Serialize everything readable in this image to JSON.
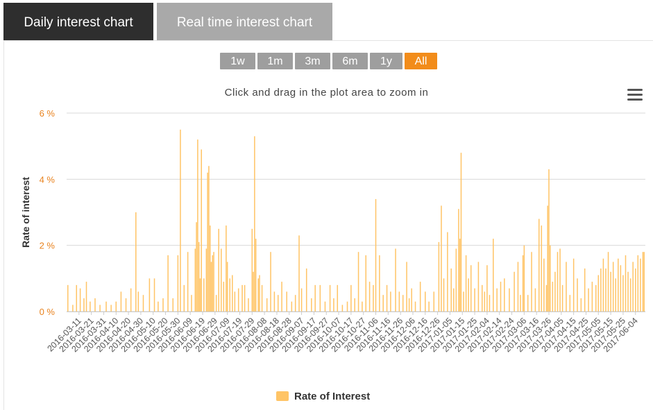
{
  "tabs": [
    {
      "label": "Daily interest chart"
    },
    {
      "label": "Real time interest chart"
    }
  ],
  "range_buttons": [
    "1w",
    "1m",
    "3m",
    "6m",
    "1y",
    "All"
  ],
  "range_selected": "All",
  "zoom_hint": "Click and drag in the plot area to zoom in",
  "colors": {
    "bar": "#ffc466",
    "axis_label": "#e8821e",
    "selected_button": "#f28c1a",
    "button": "#9e9e9e"
  },
  "chart_data": {
    "type": "bar",
    "title": "",
    "xlabel": "",
    "ylabel": "Rate of interest",
    "ylim": [
      0,
      6
    ],
    "y_ticks": [
      "0 %",
      "2 %",
      "4 %",
      "6 %"
    ],
    "x_range": [
      "2016-03-01",
      "2017-06-12"
    ],
    "x_ticks": [
      "2016-03-11",
      "2016-03-21",
      "2016-03-31",
      "2016-04-10",
      "2016-04-20",
      "2016-04-30",
      "2016-05-10",
      "2016-05-20",
      "2016-05-30",
      "2016-06-09",
      "2016-06-19",
      "2016-06-29",
      "2016-07-09",
      "2016-07-19",
      "2016-07-29",
      "2016-08-08",
      "2016-08-18",
      "2016-08-28",
      "2016-09-07",
      "2016-09-17",
      "2016-09-27",
      "2016-10-07",
      "2016-10-17",
      "2016-10-27",
      "2016-11-06",
      "2016-11-16",
      "2016-11-26",
      "2016-12-06",
      "2016-12-16",
      "2016-12-26",
      "2017-01-05",
      "2017-01-15",
      "2017-01-25",
      "2017-02-04",
      "2017-02-14",
      "2017-02-24",
      "2017-03-06",
      "2017-03-16",
      "2017-03-26",
      "2017-04-05",
      "2017-04-15",
      "2017-04-25",
      "2017-05-05",
      "2017-05-15",
      "2017-05-25",
      "2017-06-04"
    ],
    "legend": "bottom-center",
    "grid": true,
    "series": [
      {
        "name": "Rate of Interest",
        "points": [
          [
            "2016-03-02",
            0.8
          ],
          [
            "2016-03-06",
            0.2
          ],
          [
            "2016-03-09",
            0.8
          ],
          [
            "2016-03-12",
            0.7
          ],
          [
            "2016-03-15",
            0.4
          ],
          [
            "2016-03-17",
            0.9
          ],
          [
            "2016-03-20",
            0.3
          ],
          [
            "2016-03-24",
            0.4
          ],
          [
            "2016-03-28",
            0.2
          ],
          [
            "2016-04-02",
            0.3
          ],
          [
            "2016-04-06",
            0.2
          ],
          [
            "2016-04-10",
            0.3
          ],
          [
            "2016-04-14",
            0.6
          ],
          [
            "2016-04-18",
            0.4
          ],
          [
            "2016-04-22",
            0.7
          ],
          [
            "2016-04-26",
            3.0
          ],
          [
            "2016-04-28",
            0.6
          ],
          [
            "2016-05-02",
            0.5
          ],
          [
            "2016-05-07",
            1.0
          ],
          [
            "2016-05-11",
            1.0
          ],
          [
            "2016-05-14",
            0.3
          ],
          [
            "2016-05-18",
            0.4
          ],
          [
            "2016-05-22",
            1.7
          ],
          [
            "2016-05-26",
            0.4
          ],
          [
            "2016-05-30",
            1.7
          ],
          [
            "2016-06-01",
            5.5
          ],
          [
            "2016-06-04",
            0.8
          ],
          [
            "2016-06-07",
            1.8
          ],
          [
            "2016-06-10",
            0.5
          ],
          [
            "2016-06-13",
            1.9
          ],
          [
            "2016-06-14",
            2.7
          ],
          [
            "2016-06-15",
            5.2
          ],
          [
            "2016-06-16",
            2.1
          ],
          [
            "2016-06-17",
            1.0
          ],
          [
            "2016-06-18",
            4.9
          ],
          [
            "2016-06-20",
            1.0
          ],
          [
            "2016-06-22",
            1.9
          ],
          [
            "2016-06-23",
            4.2
          ],
          [
            "2016-06-24",
            4.4
          ],
          [
            "2016-06-25",
            2.6
          ],
          [
            "2016-06-26",
            1.5
          ],
          [
            "2016-06-27",
            1.7
          ],
          [
            "2016-06-28",
            1.8
          ],
          [
            "2016-06-30",
            0.5
          ],
          [
            "2016-07-02",
            2.5
          ],
          [
            "2016-07-04",
            1.9
          ],
          [
            "2016-07-06",
            0.9
          ],
          [
            "2016-07-08",
            2.6
          ],
          [
            "2016-07-09",
            1.5
          ],
          [
            "2016-07-11",
            1.0
          ],
          [
            "2016-07-13",
            1.1
          ],
          [
            "2016-07-15",
            0.6
          ],
          [
            "2016-07-18",
            0.7
          ],
          [
            "2016-07-21",
            0.8
          ],
          [
            "2016-07-23",
            0.8
          ],
          [
            "2016-07-26",
            0.4
          ],
          [
            "2016-07-29",
            2.5
          ],
          [
            "2016-07-30",
            1.2
          ],
          [
            "2016-07-31",
            5.3
          ],
          [
            "2016-08-01",
            2.2
          ],
          [
            "2016-08-03",
            1.0
          ],
          [
            "2016-08-04",
            1.1
          ],
          [
            "2016-08-06",
            0.8
          ],
          [
            "2016-08-10",
            0.4
          ],
          [
            "2016-08-13",
            1.8
          ],
          [
            "2016-08-16",
            0.6
          ],
          [
            "2016-08-19",
            0.5
          ],
          [
            "2016-08-22",
            0.9
          ],
          [
            "2016-08-26",
            0.6
          ],
          [
            "2016-08-30",
            0.3
          ],
          [
            "2016-09-02",
            0.5
          ],
          [
            "2016-09-05",
            2.3
          ],
          [
            "2016-09-07",
            0.7
          ],
          [
            "2016-09-11",
            1.3
          ],
          [
            "2016-09-15",
            0.4
          ],
          [
            "2016-09-18",
            0.8
          ],
          [
            "2016-09-22",
            0.8
          ],
          [
            "2016-09-26",
            0.3
          ],
          [
            "2016-09-30",
            0.8
          ],
          [
            "2016-10-03",
            0.4
          ],
          [
            "2016-10-06",
            0.8
          ],
          [
            "2016-10-10",
            0.2
          ],
          [
            "2016-10-14",
            0.3
          ],
          [
            "2016-10-17",
            0.8
          ],
          [
            "2016-10-20",
            0.4
          ],
          [
            "2016-10-23",
            1.8
          ],
          [
            "2016-10-26",
            0.3
          ],
          [
            "2016-10-29",
            1.7
          ],
          [
            "2016-11-01",
            0.9
          ],
          [
            "2016-11-04",
            0.8
          ],
          [
            "2016-11-06",
            3.4
          ],
          [
            "2016-11-09",
            1.7
          ],
          [
            "2016-11-12",
            0.5
          ],
          [
            "2016-11-15",
            0.8
          ],
          [
            "2016-11-18",
            0.6
          ],
          [
            "2016-11-22",
            1.9
          ],
          [
            "2016-11-25",
            0.6
          ],
          [
            "2016-11-28",
            0.5
          ],
          [
            "2016-12-01",
            1.5
          ],
          [
            "2016-12-03",
            0.4
          ],
          [
            "2016-12-05",
            0.7
          ],
          [
            "2016-12-08",
            0.3
          ],
          [
            "2016-12-12",
            0.9
          ],
          [
            "2016-12-16",
            0.6
          ],
          [
            "2016-12-19",
            0.3
          ],
          [
            "2016-12-23",
            0.6
          ],
          [
            "2016-12-27",
            2.1
          ],
          [
            "2016-12-29",
            3.2
          ],
          [
            "2016-12-31",
            1.0
          ],
          [
            "2017-01-03",
            2.4
          ],
          [
            "2017-01-06",
            1.3
          ],
          [
            "2017-01-08",
            0.7
          ],
          [
            "2017-01-10",
            1.9
          ],
          [
            "2017-01-12",
            3.1
          ],
          [
            "2017-01-13",
            2.2
          ],
          [
            "2017-01-14",
            4.8
          ],
          [
            "2017-01-16",
            0.6
          ],
          [
            "2017-01-18",
            1.7
          ],
          [
            "2017-01-20",
            1.0
          ],
          [
            "2017-01-22",
            1.4
          ],
          [
            "2017-01-25",
            0.7
          ],
          [
            "2017-01-28",
            1.5
          ],
          [
            "2017-01-31",
            0.8
          ],
          [
            "2017-02-02",
            0.6
          ],
          [
            "2017-02-04",
            1.4
          ],
          [
            "2017-02-06",
            0.5
          ],
          [
            "2017-02-09",
            2.2
          ],
          [
            "2017-02-12",
            0.7
          ],
          [
            "2017-02-15",
            0.9
          ],
          [
            "2017-02-18",
            1.0
          ],
          [
            "2017-02-22",
            0.7
          ],
          [
            "2017-02-26",
            1.2
          ],
          [
            "2017-03-01",
            1.5
          ],
          [
            "2017-03-03",
            0.5
          ],
          [
            "2017-03-05",
            1.7
          ],
          [
            "2017-03-06",
            2.0
          ],
          [
            "2017-03-09",
            0.5
          ],
          [
            "2017-03-12",
            1.8
          ],
          [
            "2017-03-15",
            0.7
          ],
          [
            "2017-03-18",
            2.8
          ],
          [
            "2017-03-20",
            2.6
          ],
          [
            "2017-03-22",
            1.6
          ],
          [
            "2017-03-24",
            0.8
          ],
          [
            "2017-03-25",
            3.2
          ],
          [
            "2017-03-26",
            4.3
          ],
          [
            "2017-03-27",
            2.0
          ],
          [
            "2017-03-29",
            0.9
          ],
          [
            "2017-03-31",
            1.2
          ],
          [
            "2017-04-02",
            1.8
          ],
          [
            "2017-04-04",
            1.9
          ],
          [
            "2017-04-06",
            0.8
          ],
          [
            "2017-04-09",
            1.5
          ],
          [
            "2017-04-12",
            0.5
          ],
          [
            "2017-04-15",
            1.6
          ],
          [
            "2017-04-18",
            1.0
          ],
          [
            "2017-04-21",
            0.4
          ],
          [
            "2017-04-24",
            1.3
          ],
          [
            "2017-04-27",
            0.7
          ],
          [
            "2017-04-30",
            0.9
          ],
          [
            "2017-05-03",
            0.8
          ],
          [
            "2017-05-05",
            1.1
          ],
          [
            "2017-05-07",
            1.3
          ],
          [
            "2017-05-09",
            1.6
          ],
          [
            "2017-05-11",
            1.3
          ],
          [
            "2017-05-13",
            1.8
          ],
          [
            "2017-05-15",
            1.2
          ],
          [
            "2017-05-17",
            1.5
          ],
          [
            "2017-05-19",
            1.0
          ],
          [
            "2017-05-21",
            1.6
          ],
          [
            "2017-05-23",
            1.4
          ],
          [
            "2017-05-25",
            1.1
          ],
          [
            "2017-05-27",
            1.7
          ],
          [
            "2017-05-29",
            1.2
          ],
          [
            "2017-05-31",
            1.0
          ],
          [
            "2017-06-02",
            1.5
          ],
          [
            "2017-06-04",
            1.3
          ],
          [
            "2017-06-06",
            1.7
          ],
          [
            "2017-06-08",
            1.6
          ],
          [
            "2017-06-10",
            1.8
          ],
          [
            "2017-06-11",
            1.8
          ]
        ]
      }
    ]
  }
}
